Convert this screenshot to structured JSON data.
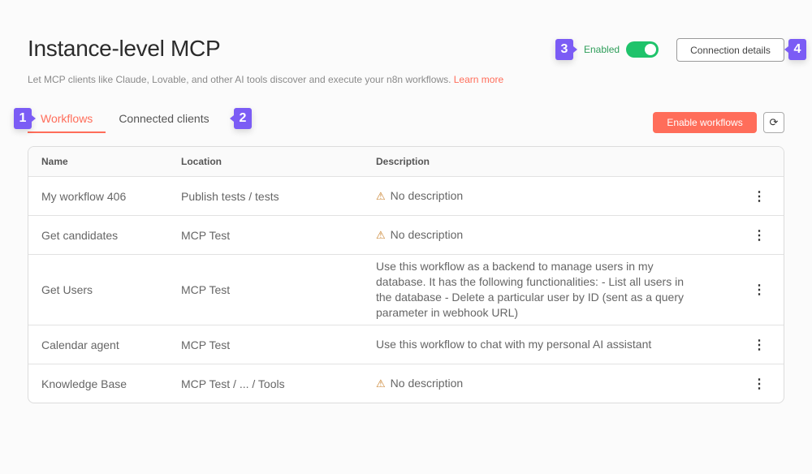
{
  "header": {
    "title": "Instance-level MCP",
    "subtitle": "Let MCP clients like Claude, Lovable, and other AI tools discover and execute your n8n workflows.",
    "learn_more": "Learn more",
    "enabled_label": "Enabled",
    "enabled": true,
    "connection_details": "Connection details"
  },
  "tabs": [
    {
      "label": "Workflows",
      "active": true
    },
    {
      "label": "Connected clients",
      "active": false
    }
  ],
  "toolbar": {
    "enable_workflows": "Enable workflows",
    "refresh_icon": "⟳"
  },
  "badges": [
    "1",
    "2",
    "3",
    "4"
  ],
  "table": {
    "headers": [
      "Name",
      "Location",
      "Description"
    ],
    "rows": [
      {
        "name": "My workflow 406",
        "location": "Publish tests / tests",
        "description": "No description",
        "warn": true
      },
      {
        "name": "Get candidates",
        "location": "MCP Test",
        "description": "No description",
        "warn": true
      },
      {
        "name": "Get Users",
        "location": "MCP Test",
        "description": "Use this workflow as a backend to manage users in my database. It has the following functionalities: - List all users in the database - Delete a particular user by ID (sent as a query parameter in webhook URL)",
        "warn": false
      },
      {
        "name": "Calendar agent",
        "location": "MCP Test",
        "description": "Use this workflow to chat with my personal AI assistant",
        "warn": false
      },
      {
        "name": "Knowledge Base",
        "location": "MCP Test / ... / Tools",
        "description": "No description",
        "warn": true
      }
    ]
  },
  "colors": {
    "accent": "#ff6d5a",
    "enabled": "#1fc36b",
    "badge": "#7b5cf5",
    "warning": "#c9822e"
  }
}
